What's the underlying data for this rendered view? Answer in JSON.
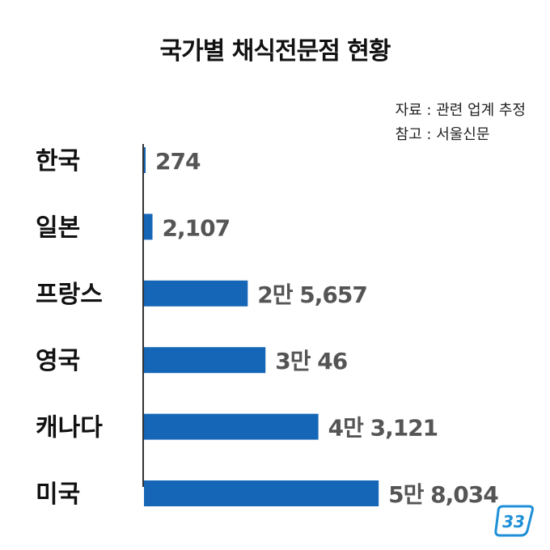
{
  "title": "국가별 채식전문점 현황",
  "notes": {
    "source": "자료 : 관련 업계 추정",
    "reference": "참고 : 서울신문"
  },
  "colors": {
    "bar": "#1566b7",
    "label": "#111111",
    "value": "#555555",
    "axis": "#333333",
    "logo": "#1e8fd8"
  },
  "logo_icon": "badge-33-logo",
  "chart_data": {
    "type": "bar",
    "orientation": "horizontal",
    "title": "국가별 채식전문점 현황",
    "categories": [
      "한국",
      "일본",
      "프랑스",
      "영국",
      "캐나다",
      "미국"
    ],
    "values": [
      274,
      2107,
      25657,
      30046,
      43121,
      58034
    ],
    "value_labels": [
      "274",
      "2,107",
      "2만 5,657",
      "3만 46",
      "4만 3,121",
      "5만 8,034"
    ],
    "xlim": [
      0,
      60000
    ],
    "grid": false,
    "legend": "none"
  }
}
